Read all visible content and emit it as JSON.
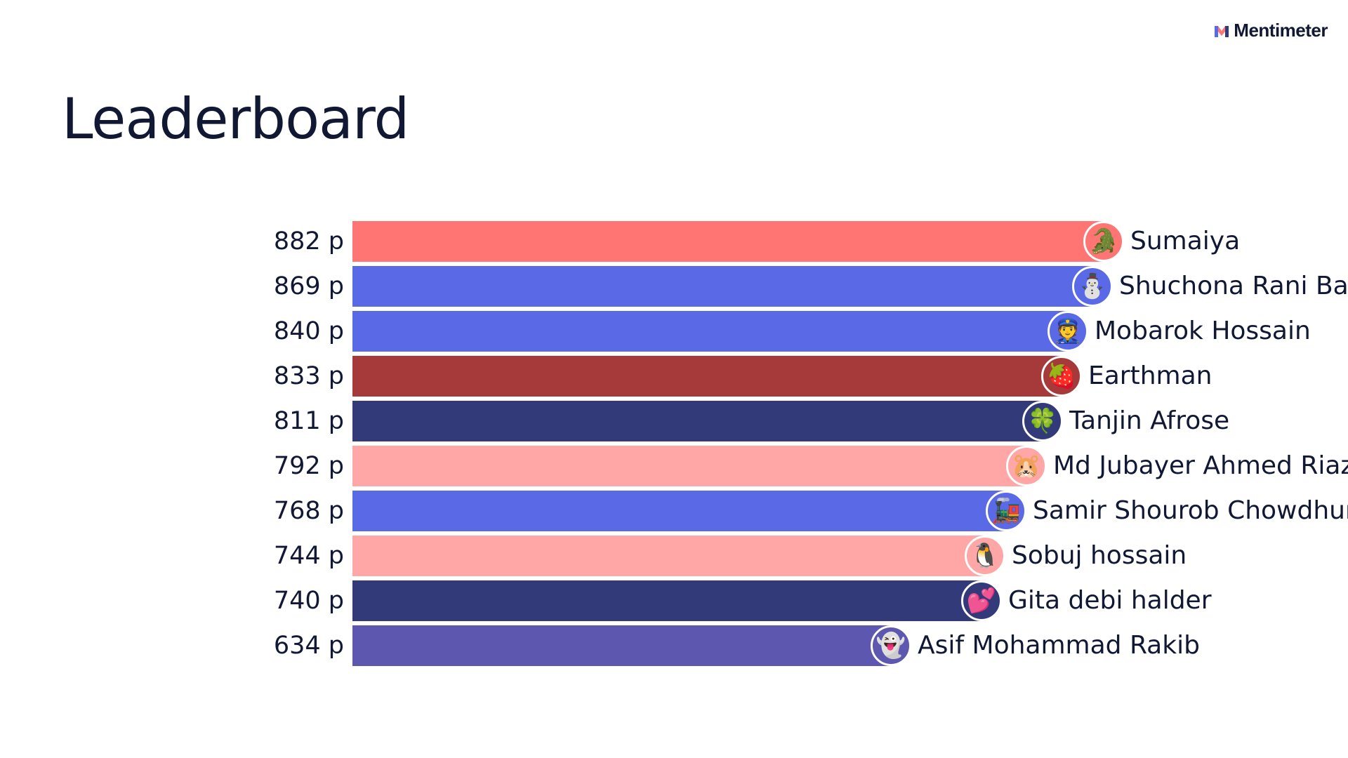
{
  "brand": {
    "name": "Mentimeter",
    "logo_icon": "mentimeter-logo-icon"
  },
  "title": "Leaderboard",
  "points_suffix": " p",
  "leaderboard": [
    {
      "rank": 1,
      "name": "Sumaiya",
      "score": 882,
      "score_label": "882 p",
      "color": "#ff7573",
      "avatar_bg": "#ff7573",
      "avatar": "🐊",
      "avatar_icon": "crocodile-icon"
    },
    {
      "rank": 2,
      "name": "Shuchona Rani Banik",
      "score": 869,
      "score_label": "869 p",
      "color": "#5a69e6",
      "avatar_bg": "#5a69e6",
      "avatar": "⛄",
      "avatar_icon": "snowman-icon"
    },
    {
      "rank": 3,
      "name": "Mobarok Hossain",
      "score": 840,
      "score_label": "840 p",
      "color": "#5a69e6",
      "avatar_bg": "#5a69e6",
      "avatar": "👮",
      "avatar_icon": "police-officer-icon"
    },
    {
      "rank": 4,
      "name": "Earthman",
      "score": 833,
      "score_label": "833 p",
      "color": "#a63a3a",
      "avatar_bg": "#a63a3a",
      "avatar": "🍓",
      "avatar_icon": "strawberry-icon"
    },
    {
      "rank": 5,
      "name": "Tanjin Afrose",
      "score": 811,
      "score_label": "811 p",
      "color": "#323a7a",
      "avatar_bg": "#323a7a",
      "avatar": "🍀",
      "avatar_icon": "four-leaf-clover-icon"
    },
    {
      "rank": 6,
      "name": "Md Jubayer Ahmed Riaz",
      "score": 792,
      "score_label": "792 p",
      "color": "#ffa6a6",
      "avatar_bg": "#ffa6a6",
      "avatar": "🐹",
      "avatar_icon": "hamster-icon"
    },
    {
      "rank": 7,
      "name": "Samir Shourob Chowdhury",
      "score": 768,
      "score_label": "768 p",
      "color": "#5a69e6",
      "avatar_bg": "#5a69e6",
      "avatar": "🚂",
      "avatar_icon": "locomotive-icon"
    },
    {
      "rank": 8,
      "name": "Sobuj hossain",
      "score": 744,
      "score_label": "744 p",
      "color": "#ffa6a6",
      "avatar_bg": "#ffa6a6",
      "avatar": "🐧",
      "avatar_icon": "penguin-icon"
    },
    {
      "rank": 9,
      "name": "Gita debi halder",
      "score": 740,
      "score_label": "740 p",
      "color": "#323a7a",
      "avatar_bg": "#323a7a",
      "avatar": "💕",
      "avatar_icon": "two-hearts-icon"
    },
    {
      "rank": 10,
      "name": "Asif Mohammad Rakib",
      "score": 634,
      "score_label": "634 p",
      "color": "#5e57b0",
      "avatar_bg": "#5e57b0",
      "avatar": "👻",
      "avatar_icon": "ghost-icon"
    }
  ],
  "chart_data": {
    "type": "bar",
    "orientation": "horizontal",
    "title": "Leaderboard",
    "categories": [
      "Sumaiya",
      "Shuchona Rani Banik",
      "Mobarok Hossain",
      "Earthman",
      "Tanjin Afrose",
      "Md Jubayer Ahmed Riaz",
      "Samir Shourob Chowdhury",
      "Sobuj hossain",
      "Gita debi halder",
      "Asif Mohammad Rakib"
    ],
    "values": [
      882,
      869,
      840,
      833,
      811,
      792,
      768,
      744,
      740,
      634
    ],
    "xlabel": "",
    "ylabel": "",
    "grid": false,
    "legend": "none"
  }
}
